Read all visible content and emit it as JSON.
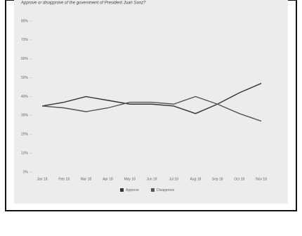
{
  "chart_data": {
    "type": "line",
    "title": "Approve or disapprove of the government of President Juan Sanz?",
    "categories": [
      "Jan 18",
      "Feb 18",
      "Mar 18",
      "Apr 18",
      "May 18",
      "Jun 18",
      "Jul 18",
      "Aug 18",
      "Sep 18",
      "Oct 18",
      "Nov 18"
    ],
    "series": [
      {
        "name": "Approve",
        "color": "#333333",
        "values": [
          35,
          37,
          40,
          38,
          36,
          36,
          35,
          31,
          36,
          42,
          47
        ]
      },
      {
        "name": "Disapprove",
        "color": "#555555",
        "values": [
          35,
          34,
          32,
          34,
          37,
          37,
          36,
          40,
          36,
          31,
          27
        ]
      }
    ],
    "ylim": [
      0,
      80
    ],
    "yticks": [
      {
        "value": 0,
        "label": "0%"
      },
      {
        "value": 10,
        "label": "10%"
      },
      {
        "value": 20,
        "label": "20%"
      },
      {
        "value": 30,
        "label": "30%"
      },
      {
        "value": 40,
        "label": "40%"
      },
      {
        "value": 50,
        "label": "50%"
      },
      {
        "value": 60,
        "label": "60%"
      },
      {
        "value": 70,
        "label": "70%"
      },
      {
        "value": 80,
        "label": "80%"
      }
    ],
    "grid": false,
    "legend": "bottom"
  }
}
